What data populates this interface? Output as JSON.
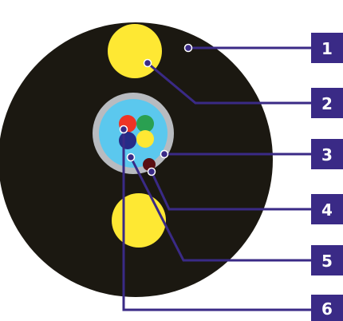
{
  "colors": {
    "jacket": "#1b1811",
    "strength_member": "#fee833",
    "tube_outer": "#b8bbc0",
    "tube_inner": "#5bc8ee",
    "fiber_red": "#ee3425",
    "fiber_green": "#2aa051",
    "fiber_yellow": "#fee833",
    "fiber_blue": "#262b87",
    "ripcord": "#5a0f12",
    "leader": "#3a2a86",
    "label_box": "#3a2a86",
    "label_text": "#ffffff"
  },
  "callouts": [
    {
      "label": "1"
    },
    {
      "label": "2"
    },
    {
      "label": "3"
    },
    {
      "label": "4"
    },
    {
      "label": "5"
    },
    {
      "label": "6"
    }
  ]
}
